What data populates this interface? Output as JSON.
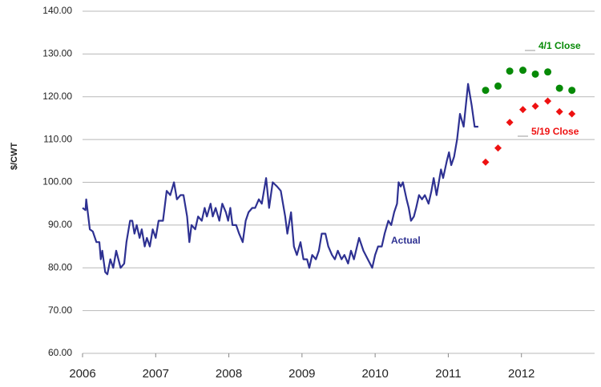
{
  "chart_data": {
    "type": "line",
    "y_label": "$/CWT",
    "xlim": [
      2006,
      2013
    ],
    "xticks": [
      2006,
      2007,
      2008,
      2009,
      2010,
      2011,
      2012
    ],
    "ylim": [
      60,
      140
    ],
    "yticks": [
      {
        "value": 60,
        "label": "60.00"
      },
      {
        "value": 70,
        "label": "70.00"
      },
      {
        "value": 80,
        "label": "80.00"
      },
      {
        "value": 90,
        "label": "90.00"
      },
      {
        "value": 100,
        "label": "100.00"
      },
      {
        "value": 110,
        "label": "110.00"
      },
      {
        "value": 120,
        "label": "120.00"
      },
      {
        "value": 130,
        "label": "130.00"
      },
      {
        "value": 140,
        "label": "140.00"
      }
    ],
    "grid": true,
    "series": [
      {
        "name": "Actual",
        "type": "line",
        "color": "#2e3192",
        "x": [
          2006.0,
          2006.04,
          2006.05,
          2006.1,
          2006.14,
          2006.19,
          2006.23,
          2006.25,
          2006.27,
          2006.31,
          2006.34,
          2006.38,
          2006.42,
          2006.46,
          2006.52,
          2006.57,
          2006.6,
          2006.65,
          2006.68,
          2006.71,
          2006.74,
          2006.78,
          2006.81,
          2006.85,
          2006.88,
          2006.92,
          2006.96,
          2007.0,
          2007.04,
          2007.1,
          2007.15,
          2007.2,
          2007.25,
          2007.29,
          2007.34,
          2007.38,
          2007.43,
          2007.46,
          2007.49,
          2007.54,
          2007.58,
          2007.63,
          2007.67,
          2007.7,
          2007.75,
          2007.78,
          2007.82,
          2007.87,
          2007.91,
          2007.96,
          2007.99,
          2008.02,
          2008.05,
          2008.1,
          2008.14,
          2008.19,
          2008.23,
          2008.27,
          2008.32,
          2008.36,
          2008.41,
          2008.45,
          2008.51,
          2008.55,
          2008.6,
          2008.66,
          2008.71,
          2008.77,
          2008.8,
          2008.85,
          2008.89,
          2008.93,
          2008.98,
          2009.02,
          2009.07,
          2009.1,
          2009.14,
          2009.19,
          2009.23,
          2009.27,
          2009.32,
          2009.36,
          2009.41,
          2009.45,
          2009.49,
          2009.54,
          2009.58,
          2009.63,
          2009.67,
          2009.71,
          2009.78,
          2009.84,
          2009.9,
          2009.96,
          2010.0,
          2010.04,
          2010.09,
          2010.13,
          2010.18,
          2010.22,
          2010.26,
          2010.3,
          2010.32,
          2010.35,
          2010.38,
          2010.43,
          2010.46,
          2010.49,
          2010.53,
          2010.56,
          2010.6,
          2010.64,
          2010.68,
          2010.73,
          2010.77,
          2010.8,
          2010.84,
          2010.87,
          2010.9,
          2010.93,
          2010.98,
          2011.01,
          2011.04,
          2011.08,
          2011.12,
          2011.16,
          2011.21,
          2011.27,
          2011.32,
          2011.36,
          2011.41
        ],
        "values": [
          94,
          93.5,
          96,
          89,
          88.5,
          86,
          86,
          82,
          84,
          79,
          78.5,
          82,
          80,
          84,
          80,
          81,
          86,
          91,
          91,
          88,
          90,
          87,
          89,
          85,
          87,
          85,
          89,
          87,
          91,
          91,
          98,
          97,
          100,
          96,
          97,
          97,
          92,
          86,
          90,
          89,
          92,
          91,
          94,
          92,
          95,
          92,
          94,
          91,
          95,
          93,
          91,
          94,
          90,
          90,
          88,
          86,
          91,
          93,
          94,
          94,
          96,
          95,
          101,
          94,
          100,
          99,
          98,
          92,
          88,
          93,
          85,
          83,
          86,
          82,
          82,
          80,
          83,
          82,
          84,
          88,
          88,
          85,
          83,
          82,
          84,
          82,
          83,
          81,
          84,
          82,
          87,
          84,
          82,
          80,
          83,
          85,
          85,
          88,
          91,
          90,
          93,
          95,
          100,
          99,
          100,
          96,
          94,
          91,
          92,
          94,
          97,
          96,
          97,
          95,
          98,
          101,
          97,
          100,
          103,
          101,
          105,
          107,
          104,
          106,
          110,
          116,
          113,
          123,
          118,
          113,
          113
        ]
      },
      {
        "name": "4/1 Close",
        "type": "scatter",
        "marker": "circle",
        "color": "#078a07",
        "x": [
          2011.51,
          2011.68,
          2011.84,
          2012.02,
          2012.19,
          2012.36,
          2012.52,
          2012.69
        ],
        "values": [
          121.5,
          122.5,
          126,
          126.2,
          125.3,
          125.8,
          122,
          121.5
        ]
      },
      {
        "name": "5/19 Close",
        "type": "scatter",
        "marker": "diamond",
        "color": "#ee1111",
        "x": [
          2011.51,
          2011.68,
          2011.84,
          2012.02,
          2012.19,
          2012.36,
          2012.52,
          2012.69
        ],
        "values": [
          104.7,
          108,
          114,
          117,
          117.8,
          119,
          116.5,
          116
        ]
      }
    ]
  }
}
